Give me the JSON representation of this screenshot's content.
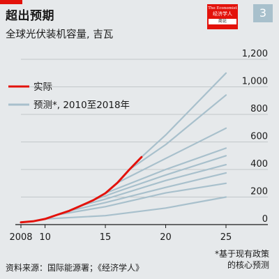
{
  "header": {
    "title": "超出预期",
    "subtitle": "全球光伏装机容量, 吉瓦",
    "badge": "3"
  },
  "logo": {
    "line1": "The Economist",
    "line2": "经济学人",
    "line3": "商论"
  },
  "footer": {
    "footnote_line1": "*基于现有政策",
    "footnote_line2": "的核心预测",
    "source": "资料来源：国际能源署；《经济学人》"
  },
  "colors": {
    "actual": "#e3120b",
    "forecast": "#a8c0cc",
    "grid": "#c2c7ca",
    "axis": "#1a1a1a"
  },
  "chart_data": {
    "type": "line",
    "title": "超出预期",
    "subtitle": "全球光伏装机容量, 吉瓦",
    "xlim": [
      2007.5,
      2025.5
    ],
    "ylim": [
      0,
      1200
    ],
    "x_ticks": [
      {
        "value": 2008,
        "label": "2008"
      },
      {
        "value": 2010,
        "label": "10"
      },
      {
        "value": 2015,
        "label": "15"
      },
      {
        "value": 2020,
        "label": "20"
      },
      {
        "value": 2025,
        "label": "25"
      }
    ],
    "y_ticks": [
      {
        "value": 0,
        "label": "0"
      },
      {
        "value": 200,
        "label": "200"
      },
      {
        "value": 400,
        "label": "400"
      },
      {
        "value": 600,
        "label": "600"
      },
      {
        "value": 800,
        "label": "800"
      },
      {
        "value": 1000,
        "label": "1,000"
      },
      {
        "value": 1200,
        "label": "1,200"
      }
    ],
    "grid": true,
    "legend": {
      "position": "top-left",
      "entries": [
        {
          "key": "actual",
          "label": "实际"
        },
        {
          "key": "forecast",
          "label": "预测*, 2010至2018年"
        }
      ]
    },
    "actual": {
      "name": "实际",
      "points": [
        [
          2008,
          16
        ],
        [
          2009,
          24
        ],
        [
          2010,
          41
        ],
        [
          2011,
          71
        ],
        [
          2012,
          100
        ],
        [
          2013,
          138
        ],
        [
          2014,
          177
        ],
        [
          2015,
          228
        ],
        [
          2016,
          304
        ],
        [
          2017,
          400
        ],
        [
          2018,
          490
        ]
      ]
    },
    "forecasts": [
      {
        "start": 2010,
        "points": [
          [
            2010,
            41
          ],
          [
            2015,
            65
          ],
          [
            2020,
            120
          ],
          [
            2025,
            200
          ]
        ]
      },
      {
        "start": 2011,
        "points": [
          [
            2011,
            71
          ],
          [
            2015,
            130
          ],
          [
            2020,
            230
          ],
          [
            2025,
            300
          ]
        ]
      },
      {
        "start": 2012,
        "points": [
          [
            2012,
            100
          ],
          [
            2015,
            160
          ],
          [
            2020,
            270
          ],
          [
            2025,
            375
          ]
        ]
      },
      {
        "start": 2013,
        "points": [
          [
            2013,
            138
          ],
          [
            2015,
            185
          ],
          [
            2020,
            320
          ],
          [
            2025,
            435
          ]
        ]
      },
      {
        "start": 2014,
        "points": [
          [
            2014,
            177
          ],
          [
            2016,
            240
          ],
          [
            2020,
            360
          ],
          [
            2025,
            500
          ]
        ]
      },
      {
        "start": 2015,
        "points": [
          [
            2015,
            228
          ],
          [
            2020,
            400
          ],
          [
            2025,
            555
          ]
        ]
      },
      {
        "start": 2016,
        "points": [
          [
            2016,
            304
          ],
          [
            2020,
            480
          ],
          [
            2025,
            700
          ]
        ]
      },
      {
        "start": 2017,
        "points": [
          [
            2017,
            400
          ],
          [
            2020,
            580
          ],
          [
            2025,
            940
          ]
        ]
      },
      {
        "start": 2018,
        "points": [
          [
            2018,
            490
          ],
          [
            2020,
            650
          ],
          [
            2025,
            1100
          ]
        ]
      }
    ]
  }
}
